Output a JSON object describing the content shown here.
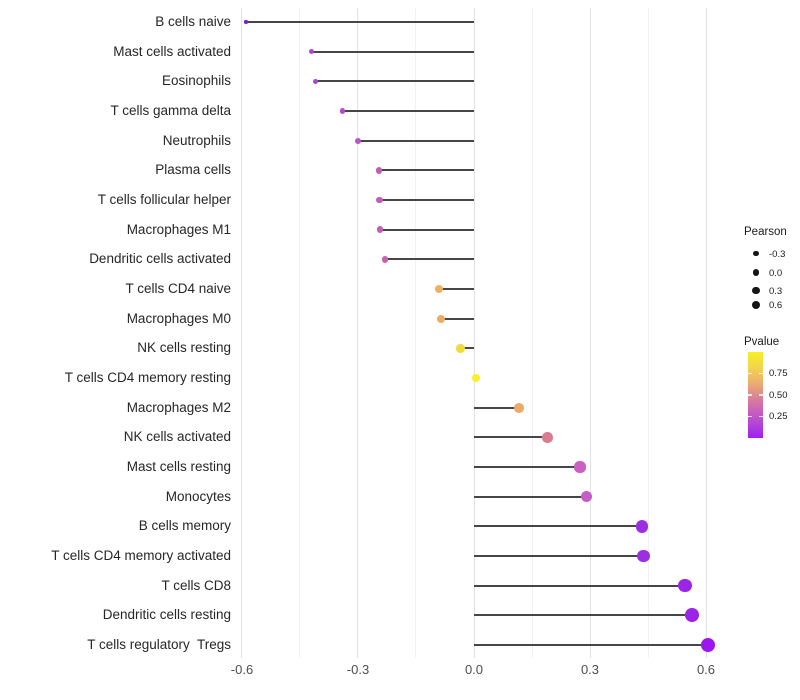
{
  "chart_data": {
    "type": "lollipop",
    "orientation": "horizontal",
    "title": "",
    "xlabel": "",
    "ylabel": "",
    "grid": true,
    "xlim": [
      -0.615,
      0.79
    ],
    "x_tick_values": [
      -0.6,
      -0.3,
      0.0,
      0.3,
      0.6
    ],
    "x_axis_ticks": [
      "-0.6",
      "-0.3",
      "0.0",
      "0.3",
      "0.6"
    ],
    "x_minor_tick_values": [
      -0.45,
      -0.15,
      0.15,
      0.45
    ],
    "size_maps_to": "Pearson",
    "color_maps_to": "Pvalue",
    "rows": [
      {
        "label": "B cells naive",
        "pearson": -0.59,
        "pvalue": 0.03,
        "color": "#8A17C8"
      },
      {
        "label": "Mast cells activated",
        "pearson": -0.42,
        "pvalue": 0.14,
        "color": "#AB45D3"
      },
      {
        "label": "Eosinophils",
        "pearson": -0.41,
        "pvalue": 0.14,
        "color": "#AB45D3"
      },
      {
        "label": "T cells gamma delta",
        "pearson": -0.34,
        "pvalue": 0.18,
        "color": "#B14ECB"
      },
      {
        "label": "Neutrophils",
        "pearson": -0.3,
        "pvalue": 0.22,
        "color": "#BB55C5"
      },
      {
        "label": "Plasma cells",
        "pearson": -0.246,
        "pvalue": 0.3,
        "color": "#C55CB4"
      },
      {
        "label": "T cells follicular helper",
        "pearson": -0.244,
        "pvalue": 0.3,
        "color": "#C55CB4"
      },
      {
        "label": "Macrophages M1",
        "pearson": -0.243,
        "pvalue": 0.3,
        "color": "#C55EB2"
      },
      {
        "label": "Dendritic cells activated",
        "pearson": -0.23,
        "pvalue": 0.33,
        "color": "#CA60AE"
      },
      {
        "label": "T cells CD4 naive",
        "pearson": -0.09,
        "pvalue": 0.67,
        "color": "#EDB065"
      },
      {
        "label": "Macrophages M0",
        "pearson": -0.085,
        "pvalue": 0.66,
        "color": "#EDAC63"
      },
      {
        "label": "NK cells resting",
        "pearson": -0.035,
        "pvalue": 0.85,
        "color": "#EEDC3E"
      },
      {
        "label": "T cells CD4 memory resting",
        "pearson": 0.005,
        "pvalue": 0.96,
        "color": "#F9F027"
      },
      {
        "label": "Macrophages M2",
        "pearson": 0.117,
        "pvalue": 0.62,
        "color": "#EBA96B"
      },
      {
        "label": "NK cells activated",
        "pearson": 0.19,
        "pvalue": 0.5,
        "color": "#D97C90"
      },
      {
        "label": "Mast cells resting",
        "pearson": 0.274,
        "pvalue": 0.31,
        "color": "#CB5FC3"
      },
      {
        "label": "Monocytes",
        "pearson": 0.291,
        "pvalue": 0.29,
        "color": "#C45EC6"
      },
      {
        "label": "B cells memory",
        "pearson": 0.434,
        "pvalue": 0.06,
        "color": "#9C2FE1"
      },
      {
        "label": "T cells CD4 memory activated",
        "pearson": 0.438,
        "pvalue": 0.06,
        "color": "#9C2FE1"
      },
      {
        "label": "T cells CD8",
        "pearson": 0.546,
        "pvalue": 0.04,
        "color": "#9A25E6"
      },
      {
        "label": "Dendritic cells resting",
        "pearson": 0.563,
        "pvalue": 0.04,
        "color": "#9A25E6"
      },
      {
        "label": "T cells regulatory  Tregs",
        "pearson": 0.605,
        "pvalue": 0.02,
        "color": "#9C17EE"
      }
    ]
  },
  "legend": {
    "size": {
      "title": "Pearson",
      "entries": [
        {
          "label": "-0.3",
          "value": -0.3
        },
        {
          "label": "0.0",
          "value": 0.0
        },
        {
          "label": "0.3",
          "value": 0.3
        },
        {
          "label": "0.6",
          "value": 0.6
        }
      ]
    },
    "color": {
      "title": "Pvalue",
      "ticks": [
        {
          "label": "0.75",
          "value": 0.75
        },
        {
          "label": "0.50",
          "value": 0.5
        },
        {
          "label": "0.25",
          "value": 0.25
        }
      ],
      "low_color": "#A020F0",
      "high_color": "#F8F01F",
      "range": [
        0.0,
        1.0
      ]
    }
  },
  "colors": {
    "background": "#FFFFFF",
    "stem": "#464646",
    "grid_major": "#E2E2E2",
    "grid_minor": "#F1F1F1",
    "axis_text": "#4D4D4D",
    "label_text": "#262626",
    "legend_dot": "#151515"
  }
}
